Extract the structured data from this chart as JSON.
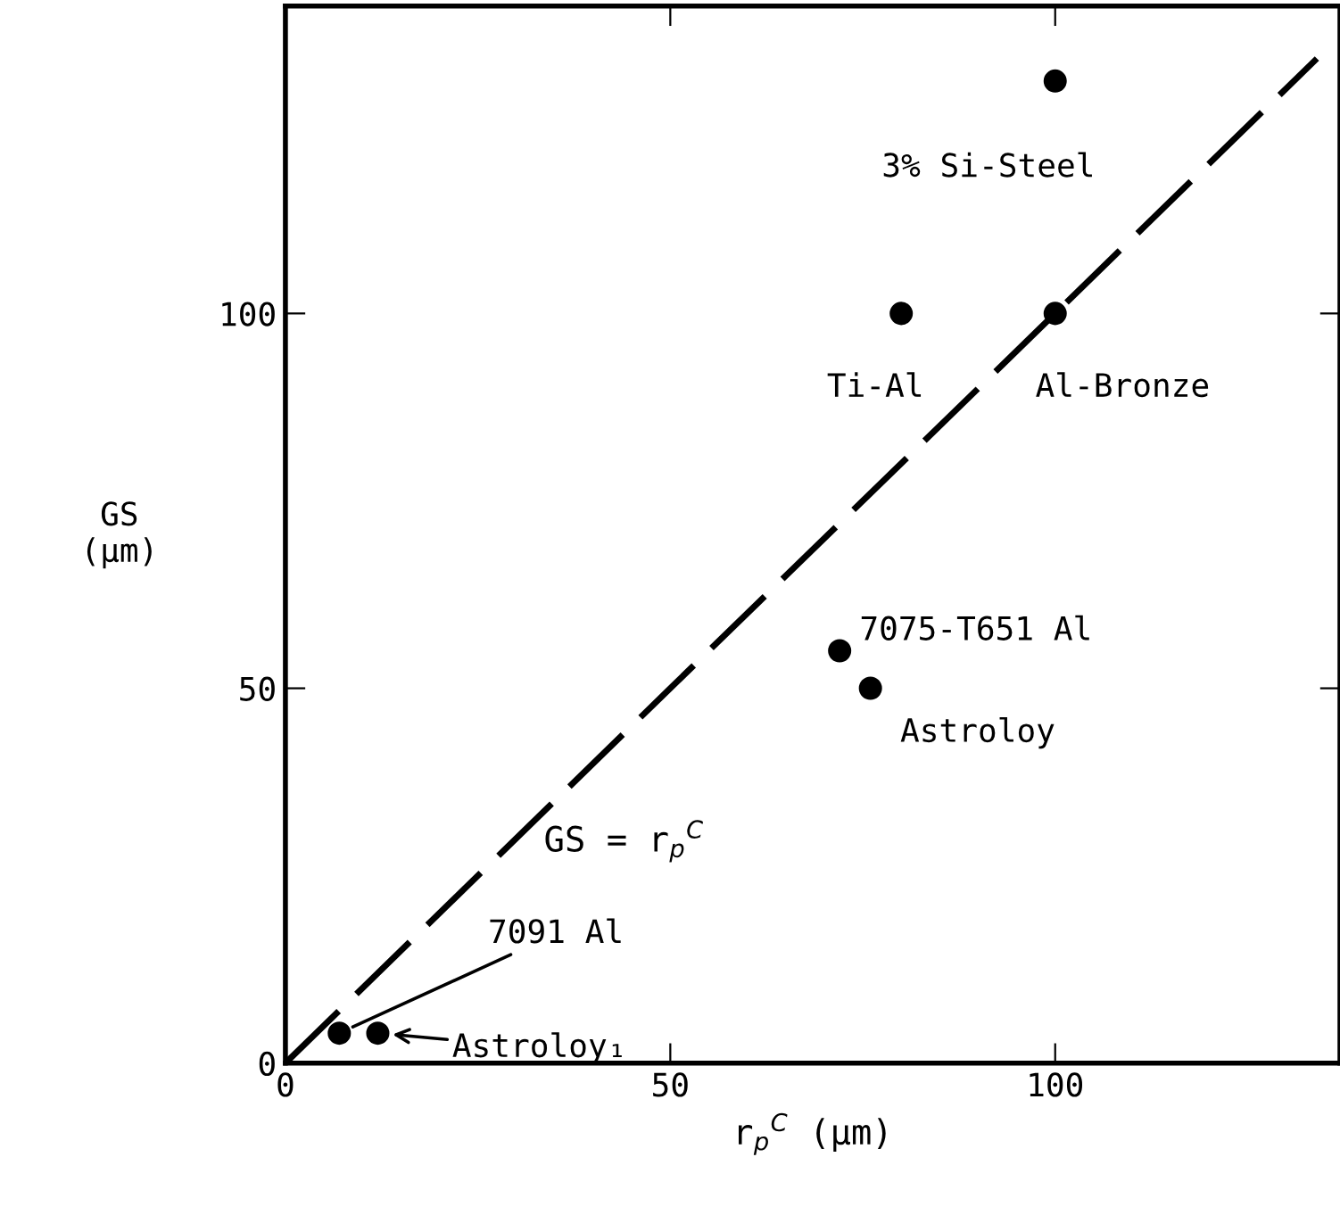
{
  "chart_data": {
    "type": "scatter",
    "xlabel": "r$_{p}$$^{C}$ (μm)",
    "ylabel": "GS\n(μm)",
    "xlim": [
      0,
      137
    ],
    "ylim": [
      0,
      141
    ],
    "xticks": [
      0,
      50,
      100
    ],
    "yticks": [
      0,
      50,
      100
    ],
    "grid": false,
    "legend": false,
    "series": [
      {
        "color": "#000000",
        "marker": "circle",
        "x": [
          100,
          80,
          100,
          72,
          76,
          7,
          12
        ],
        "values": [
          131,
          100,
          100,
          55,
          50,
          4,
          4
        ]
      },
      {
        "type": "line",
        "color": "#000000",
        "marker": "none",
        "line_style": "dashed",
        "x": [
          0,
          134
        ],
        "values": [
          0,
          134
        ]
      }
    ],
    "annotations": [
      {
        "text": "3% Si-Steel",
        "x": 100,
        "y": 131
      },
      {
        "text": "Ti-Al",
        "x": 80,
        "y": 100
      },
      {
        "text": "Al-Bronze",
        "x": 100,
        "y": 100
      },
      {
        "text": "7075-T651 Al",
        "x": 72,
        "y": 55
      },
      {
        "text": "Astroloy",
        "x": 76,
        "y": 50
      },
      {
        "text": "7091 Al",
        "x": 7,
        "y": 4
      },
      {
        "text": "Astroloy₁",
        "x": 12,
        "y": 4
      },
      "GS = r$_{p}$$^{C}$"
    ]
  }
}
